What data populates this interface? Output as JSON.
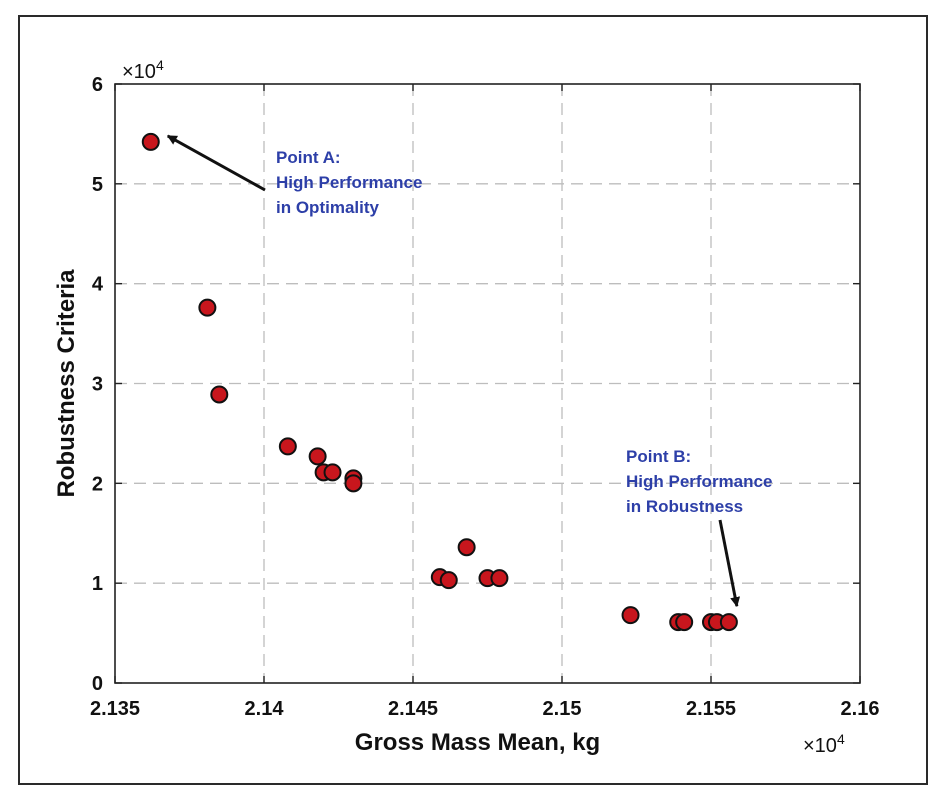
{
  "chart_data": {
    "type": "scatter",
    "xlabel": "Gross Mass Mean, kg",
    "ylabel": "Robustness Criteria",
    "x_multiplier": "×10",
    "x_multiplier_exp": "4",
    "y_multiplier": "×10",
    "y_multiplier_exp": "4",
    "xlim": [
      2.135,
      2.16
    ],
    "ylim": [
      0,
      6
    ],
    "x_ticks": [
      "2.135",
      "2.14",
      "2.145",
      "2.15",
      "2.155",
      "2.16"
    ],
    "y_ticks": [
      "0",
      "1",
      "2",
      "3",
      "4",
      "5",
      "6"
    ],
    "grid": true,
    "marker_color": "#c8161d",
    "annotation_color": "#2d3fa8",
    "points": [
      {
        "x": 2.1362,
        "y": 5.42
      },
      {
        "x": 2.1381,
        "y": 3.76
      },
      {
        "x": 2.1385,
        "y": 2.89
      },
      {
        "x": 2.1408,
        "y": 2.37
      },
      {
        "x": 2.1418,
        "y": 2.27
      },
      {
        "x": 2.142,
        "y": 2.11
      },
      {
        "x": 2.1423,
        "y": 2.11
      },
      {
        "x": 2.143,
        "y": 2.05
      },
      {
        "x": 2.143,
        "y": 2.0
      },
      {
        "x": 2.1459,
        "y": 1.06
      },
      {
        "x": 2.1462,
        "y": 1.03
      },
      {
        "x": 2.1468,
        "y": 1.36
      },
      {
        "x": 2.1475,
        "y": 1.05
      },
      {
        "x": 2.1479,
        "y": 1.05
      },
      {
        "x": 2.1523,
        "y": 0.68
      },
      {
        "x": 2.1539,
        "y": 0.61
      },
      {
        "x": 2.1541,
        "y": 0.61
      },
      {
        "x": 2.155,
        "y": 0.61
      },
      {
        "x": 2.1552,
        "y": 0.61
      },
      {
        "x": 2.1556,
        "y": 0.61
      }
    ],
    "annotations": [
      {
        "name": "point-a",
        "lines": [
          "Point A:",
          "High Performance",
          "in Optimality"
        ],
        "target": {
          "x": 2.1362,
          "y": 5.42
        }
      },
      {
        "name": "point-b",
        "lines": [
          "Point B:",
          "High Performance",
          "in Robustness"
        ],
        "target": {
          "x": 2.1556,
          "y": 0.61
        }
      }
    ]
  }
}
